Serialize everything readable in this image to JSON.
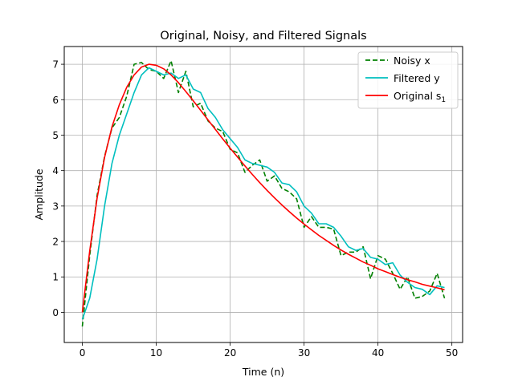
{
  "chart_data": {
    "type": "line",
    "title": "Original, Noisy, and Filtered Signals",
    "xlabel": "Time (n)",
    "ylabel": "Amplitude",
    "xlim": [
      -2.45,
      51.45
    ],
    "ylim": [
      -0.85,
      7.5
    ],
    "xticks": [
      0,
      10,
      20,
      30,
      40,
      50
    ],
    "yticks": [
      0,
      1,
      2,
      3,
      4,
      5,
      6,
      7
    ],
    "grid": true,
    "legend_position": "top-right",
    "x": [
      0,
      1,
      2,
      3,
      4,
      5,
      6,
      7,
      8,
      9,
      10,
      11,
      12,
      13,
      14,
      15,
      16,
      17,
      18,
      19,
      20,
      21,
      22,
      23,
      24,
      25,
      26,
      27,
      28,
      29,
      30,
      31,
      32,
      33,
      34,
      35,
      36,
      37,
      38,
      39,
      40,
      41,
      42,
      43,
      44,
      45,
      46,
      47,
      48,
      49
    ],
    "series": [
      {
        "name": "Noisy x",
        "color": "#008000",
        "style": "dashed",
        "values": [
          -0.4,
          1.6,
          3.3,
          4.4,
          5.2,
          5.5,
          6.1,
          7.0,
          7.05,
          6.85,
          6.8,
          6.6,
          7.1,
          6.2,
          6.8,
          5.8,
          5.9,
          5.4,
          5.2,
          5.1,
          4.6,
          4.5,
          3.95,
          4.15,
          4.3,
          3.7,
          3.85,
          3.5,
          3.4,
          3.2,
          2.4,
          2.7,
          2.4,
          2.4,
          2.35,
          1.6,
          1.7,
          1.7,
          1.85,
          0.95,
          1.6,
          1.5,
          1.1,
          0.65,
          1.0,
          0.4,
          0.45,
          0.6,
          1.1,
          0.4
        ]
      },
      {
        "name": "Filtered y",
        "color": "#00bfbf",
        "style": "solid",
        "values": [
          -0.2,
          0.4,
          1.5,
          3.0,
          4.2,
          5.0,
          5.6,
          6.2,
          6.7,
          6.9,
          6.8,
          6.7,
          6.75,
          6.6,
          6.7,
          6.3,
          6.2,
          5.75,
          5.5,
          5.15,
          4.9,
          4.65,
          4.3,
          4.2,
          4.15,
          4.1,
          3.95,
          3.65,
          3.6,
          3.4,
          3.0,
          2.8,
          2.5,
          2.5,
          2.4,
          2.15,
          1.85,
          1.75,
          1.8,
          1.55,
          1.5,
          1.35,
          1.4,
          1.05,
          0.85,
          0.7,
          0.65,
          0.5,
          0.75,
          0.7
        ]
      },
      {
        "name": "Original s1",
        "label_main": "Original s",
        "label_sub": "1",
        "color": "#ff0000",
        "style": "solid",
        "values": [
          0.0,
          1.73,
          3.22,
          4.37,
          5.23,
          5.86,
          6.35,
          6.7,
          6.92,
          7.0,
          6.97,
          6.87,
          6.7,
          6.48,
          6.23,
          5.97,
          5.7,
          5.43,
          5.16,
          4.89,
          4.63,
          4.38,
          4.13,
          3.89,
          3.66,
          3.44,
          3.23,
          3.03,
          2.84,
          2.66,
          2.49,
          2.33,
          2.17,
          2.03,
          1.89,
          1.76,
          1.64,
          1.53,
          1.42,
          1.33,
          1.23,
          1.15,
          1.07,
          0.99,
          0.92,
          0.86,
          0.79,
          0.74,
          0.69,
          0.64
        ]
      }
    ]
  }
}
